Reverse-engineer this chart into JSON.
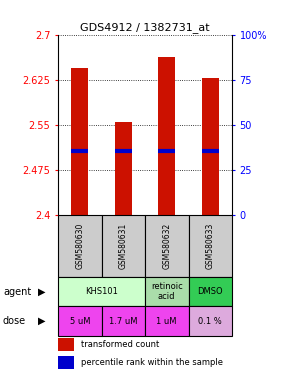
{
  "title": "GDS4912 / 1382731_at",
  "samples": [
    "GSM580630",
    "GSM580631",
    "GSM580632",
    "GSM580633"
  ],
  "bar_bottoms": [
    2.4,
    2.4,
    2.4,
    2.4
  ],
  "bar_tops": [
    2.645,
    2.555,
    2.662,
    2.628
  ],
  "percentile_values": [
    2.507,
    2.506,
    2.507,
    2.507
  ],
  "ylim": [
    2.4,
    2.7
  ],
  "yticks_left": [
    2.4,
    2.475,
    2.55,
    2.625,
    2.7
  ],
  "yticks_right": [
    0,
    25,
    50,
    75,
    100
  ],
  "bar_color": "#cc1100",
  "percentile_color": "#0000cc",
  "agent_data": [
    {
      "label": "KHS101",
      "start": 0,
      "end": 2,
      "color": "#ccffcc"
    },
    {
      "label": "retinoic\nacid",
      "start": 2,
      "end": 3,
      "color": "#aaddaa"
    },
    {
      "label": "DMSO",
      "start": 3,
      "end": 4,
      "color": "#33cc55"
    }
  ],
  "dose_labels": [
    "5 uM",
    "1.7 uM",
    "1 uM",
    "0.1 %"
  ],
  "dose_colors": [
    "#ee44ee",
    "#ee44ee",
    "#ee44ee",
    "#ddaadd"
  ],
  "sample_bg": "#cccccc",
  "legend_red": "transformed count",
  "legend_blue": "percentile rank within the sample",
  "n_bars": 4
}
